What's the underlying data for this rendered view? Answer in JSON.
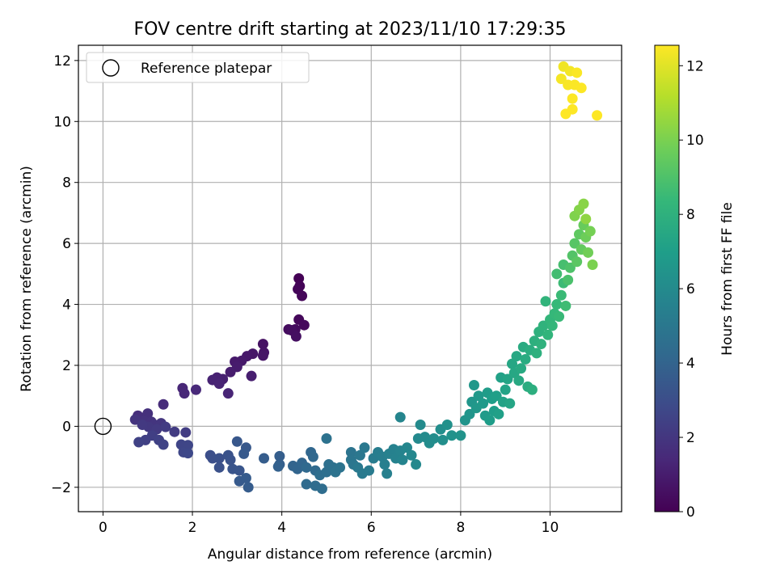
{
  "chart_data": {
    "type": "scatter",
    "title": "FOV centre drift starting at 2023/11/10 17:29:35",
    "xlabel": "Angular distance from reference (arcmin)",
    "ylabel": "Rotation from reference (arcmin)",
    "xlim": [
      -0.55,
      11.6
    ],
    "ylim": [
      -2.8,
      12.5
    ],
    "xticks": [
      0,
      2,
      4,
      6,
      8,
      10
    ],
    "yticks": [
      -2,
      0,
      2,
      4,
      6,
      8,
      10,
      12
    ],
    "ytick_labels": [
      "−2",
      "0",
      "2",
      "4",
      "6",
      "8",
      "10",
      "12"
    ],
    "grid": true,
    "legend": {
      "position": "top-left",
      "entries": [
        "Reference platepar"
      ]
    },
    "reference_point": {
      "x": 0,
      "y": 0
    },
    "colorbar": {
      "label": "Hours from first FF file",
      "range": [
        0,
        12.55
      ],
      "ticks": [
        0,
        2,
        4,
        6,
        8,
        10,
        12
      ],
      "colormap": "viridis"
    },
    "points": [
      [
        4.38,
        4.85,
        0.05
      ],
      [
        4.4,
        4.6,
        0.1
      ],
      [
        4.36,
        4.5,
        0.15
      ],
      [
        4.45,
        4.28,
        0.2
      ],
      [
        4.38,
        3.5,
        0.25
      ],
      [
        4.5,
        3.32,
        0.3
      ],
      [
        4.3,
        3.18,
        0.35
      ],
      [
        4.15,
        3.18,
        0.4
      ],
      [
        4.22,
        3.15,
        0.45
      ],
      [
        4.32,
        2.95,
        0.5
      ],
      [
        3.58,
        2.7,
        0.6
      ],
      [
        3.6,
        2.42,
        0.65
      ],
      [
        3.58,
        2.32,
        0.7
      ],
      [
        3.35,
        2.38,
        0.75
      ],
      [
        3.22,
        2.3,
        0.8
      ],
      [
        3.1,
        2.15,
        0.85
      ],
      [
        2.95,
        2.12,
        0.9
      ],
      [
        3.0,
        1.95,
        0.95
      ],
      [
        2.85,
        1.78,
        1.0
      ],
      [
        3.32,
        1.65,
        1.05
      ],
      [
        2.68,
        1.55,
        1.1
      ],
      [
        2.55,
        1.6,
        1.15
      ],
      [
        2.45,
        1.52,
        1.2
      ],
      [
        2.6,
        1.4,
        1.25
      ],
      [
        2.8,
        1.08,
        1.3
      ],
      [
        1.78,
        1.25,
        1.35
      ],
      [
        1.82,
        1.08,
        1.4
      ],
      [
        2.08,
        1.2,
        1.45
      ],
      [
        1.35,
        0.72,
        1.55
      ],
      [
        0.78,
        0.35,
        1.65
      ],
      [
        0.85,
        0.28,
        1.7
      ],
      [
        1.0,
        0.42,
        1.75
      ],
      [
        0.92,
        0.18,
        1.8
      ],
      [
        1.08,
        0.15,
        1.85
      ],
      [
        0.72,
        0.22,
        1.9
      ],
      [
        1.15,
        0.05,
        1.95
      ],
      [
        1.3,
        0.1,
        2.0
      ],
      [
        1.02,
        -0.02,
        2.05
      ],
      [
        0.88,
        0.05,
        2.1
      ],
      [
        1.2,
        -0.1,
        2.15
      ],
      [
        1.4,
        -0.02,
        2.2
      ],
      [
        1.6,
        -0.18,
        2.25
      ],
      [
        1.85,
        -0.2,
        2.3
      ],
      [
        1.1,
        -0.3,
        2.35
      ],
      [
        0.95,
        -0.45,
        2.4
      ],
      [
        1.25,
        -0.45,
        2.45
      ],
      [
        0.8,
        -0.52,
        2.5
      ],
      [
        1.35,
        -0.6,
        2.55
      ],
      [
        1.75,
        -0.6,
        2.6
      ],
      [
        1.9,
        -0.62,
        2.65
      ],
      [
        1.8,
        -0.85,
        2.7
      ],
      [
        1.9,
        -0.88,
        2.75
      ],
      [
        2.4,
        -0.95,
        3.0
      ],
      [
        2.45,
        -1.05,
        3.05
      ],
      [
        2.6,
        -1.05,
        3.1
      ],
      [
        2.6,
        -1.35,
        3.15
      ],
      [
        2.8,
        -0.95,
        3.2
      ],
      [
        2.85,
        -1.1,
        3.25
      ],
      [
        2.9,
        -1.4,
        3.3
      ],
      [
        3.05,
        -1.45,
        3.35
      ],
      [
        3.0,
        -0.5,
        3.4
      ],
      [
        3.2,
        -0.7,
        3.45
      ],
      [
        3.15,
        -0.9,
        3.5
      ],
      [
        3.05,
        -1.8,
        3.55
      ],
      [
        3.2,
        -1.7,
        3.6
      ],
      [
        3.25,
        -2.0,
        3.65
      ],
      [
        3.6,
        -1.05,
        3.7
      ],
      [
        3.95,
        -0.98,
        3.75
      ],
      [
        3.95,
        -1.25,
        3.8
      ],
      [
        3.92,
        -1.32,
        3.85
      ],
      [
        4.25,
        -1.3,
        4.0
      ],
      [
        4.35,
        -1.4,
        4.05
      ],
      [
        4.45,
        -1.2,
        4.1
      ],
      [
        4.65,
        -0.85,
        4.15
      ],
      [
        4.7,
        -1.0,
        4.2
      ],
      [
        4.55,
        -1.35,
        4.25
      ],
      [
        4.75,
        -1.45,
        4.3
      ],
      [
        4.55,
        -1.9,
        4.35
      ],
      [
        4.75,
        -1.95,
        4.4
      ],
      [
        4.9,
        -2.05,
        4.45
      ],
      [
        4.85,
        -1.6,
        4.5
      ],
      [
        5.0,
        -1.5,
        4.55
      ],
      [
        5.05,
        -1.25,
        4.6
      ],
      [
        5.15,
        -1.35,
        4.65
      ],
      [
        5.0,
        -0.4,
        4.7
      ],
      [
        5.2,
        -1.5,
        4.75
      ],
      [
        5.3,
        -1.35,
        4.8
      ],
      [
        5.55,
        -0.85,
        4.85
      ],
      [
        5.55,
        -1.1,
        4.9
      ],
      [
        5.6,
        -1.25,
        4.95
      ],
      [
        5.75,
        -0.95,
        5.0
      ],
      [
        5.85,
        -0.7,
        5.05
      ],
      [
        5.7,
        -1.35,
        5.1
      ],
      [
        5.8,
        -1.55,
        5.15
      ],
      [
        5.95,
        -1.45,
        5.2
      ],
      [
        6.05,
        -1.05,
        5.25
      ],
      [
        6.15,
        -0.85,
        5.3
      ],
      [
        6.25,
        -1.0,
        5.35
      ],
      [
        6.3,
        -1.25,
        5.4
      ],
      [
        6.35,
        -1.55,
        5.45
      ],
      [
        6.4,
        -0.9,
        5.5
      ],
      [
        6.5,
        -0.75,
        5.55
      ],
      [
        6.55,
        -1.05,
        5.6
      ],
      [
        6.65,
        -0.8,
        5.65
      ],
      [
        6.7,
        -1.1,
        5.7
      ],
      [
        6.65,
        0.3,
        5.75
      ],
      [
        6.8,
        -0.7,
        5.8
      ],
      [
        6.9,
        -0.95,
        5.85
      ],
      [
        7.0,
        -1.25,
        5.9
      ],
      [
        7.05,
        -0.4,
        5.95
      ],
      [
        7.1,
        0.05,
        6.0
      ],
      [
        7.2,
        -0.35,
        6.05
      ],
      [
        7.3,
        -0.55,
        6.1
      ],
      [
        7.4,
        -0.4,
        6.15
      ],
      [
        7.55,
        -0.1,
        6.2
      ],
      [
        7.6,
        -0.45,
        6.25
      ],
      [
        7.7,
        0.05,
        6.3
      ],
      [
        7.8,
        -0.3,
        6.35
      ],
      [
        8.0,
        -0.3,
        6.4
      ],
      [
        8.1,
        0.2,
        6.45
      ],
      [
        8.2,
        0.4,
        6.5
      ],
      [
        8.25,
        0.8,
        6.55
      ],
      [
        8.3,
        1.35,
        6.6
      ],
      [
        8.35,
        0.6,
        6.65
      ],
      [
        8.4,
        1.0,
        6.7
      ],
      [
        8.5,
        0.75,
        6.75
      ],
      [
        8.55,
        0.35,
        6.8
      ],
      [
        8.6,
        1.1,
        6.85
      ],
      [
        8.65,
        0.2,
        6.9
      ],
      [
        8.7,
        0.9,
        6.95
      ],
      [
        8.75,
        0.5,
        7.0
      ],
      [
        8.8,
        1.0,
        7.05
      ],
      [
        8.85,
        0.4,
        7.1
      ],
      [
        8.9,
        1.6,
        7.15
      ],
      [
        8.95,
        0.8,
        7.2
      ],
      [
        9.0,
        1.2,
        7.25
      ],
      [
        9.05,
        1.55,
        7.3
      ],
      [
        9.1,
        0.75,
        7.35
      ],
      [
        9.15,
        2.05,
        7.4
      ],
      [
        9.2,
        1.75,
        7.45
      ],
      [
        9.25,
        2.3,
        7.5
      ],
      [
        9.3,
        1.5,
        7.55
      ],
      [
        9.35,
        1.9,
        7.6
      ],
      [
        9.4,
        2.6,
        7.65
      ],
      [
        9.45,
        2.2,
        7.7
      ],
      [
        9.5,
        1.3,
        7.75
      ],
      [
        9.55,
        2.5,
        7.8
      ],
      [
        9.6,
        1.2,
        7.85
      ],
      [
        9.65,
        2.8,
        7.9
      ],
      [
        9.7,
        2.4,
        7.95
      ],
      [
        9.75,
        3.1,
        8.0
      ],
      [
        9.8,
        2.7,
        8.05
      ],
      [
        9.85,
        3.3,
        8.1
      ],
      [
        9.9,
        4.1,
        8.15
      ],
      [
        9.95,
        3.0,
        8.2
      ],
      [
        10.0,
        3.5,
        8.25
      ],
      [
        10.05,
        3.3,
        8.3
      ],
      [
        10.1,
        3.7,
        8.35
      ],
      [
        10.15,
        4.0,
        8.4
      ],
      [
        10.2,
        3.6,
        8.45
      ],
      [
        10.25,
        4.3,
        8.5
      ],
      [
        10.3,
        4.7,
        8.55
      ],
      [
        10.35,
        3.95,
        8.6
      ],
      [
        10.15,
        5.0,
        8.7
      ],
      [
        10.3,
        5.3,
        8.8
      ],
      [
        10.4,
        4.8,
        8.9
      ],
      [
        10.45,
        5.2,
        9.0
      ],
      [
        10.5,
        5.6,
        9.1
      ],
      [
        10.55,
        6.0,
        9.2
      ],
      [
        10.6,
        5.4,
        9.3
      ],
      [
        10.65,
        6.3,
        9.4
      ],
      [
        10.7,
        5.8,
        9.5
      ],
      [
        10.75,
        6.6,
        9.6
      ],
      [
        10.8,
        6.2,
        9.7
      ],
      [
        10.85,
        5.7,
        9.8
      ],
      [
        10.9,
        6.4,
        9.9
      ],
      [
        10.95,
        5.3,
        10.0
      ],
      [
        10.55,
        6.9,
        10.1
      ],
      [
        10.65,
        7.1,
        10.2
      ],
      [
        10.75,
        7.3,
        10.3
      ],
      [
        10.8,
        6.8,
        10.4
      ],
      [
        10.3,
        11.8,
        12.3
      ],
      [
        10.45,
        11.65,
        12.35
      ],
      [
        10.25,
        11.4,
        12.4
      ],
      [
        10.4,
        11.2,
        12.45
      ],
      [
        10.6,
        11.6,
        12.5
      ],
      [
        10.55,
        11.2,
        12.52
      ],
      [
        10.7,
        11.1,
        12.53
      ],
      [
        10.5,
        10.75,
        12.54
      ],
      [
        10.35,
        10.25,
        12.55
      ],
      [
        10.5,
        10.4,
        12.55
      ],
      [
        11.05,
        10.2,
        12.55
      ]
    ]
  }
}
